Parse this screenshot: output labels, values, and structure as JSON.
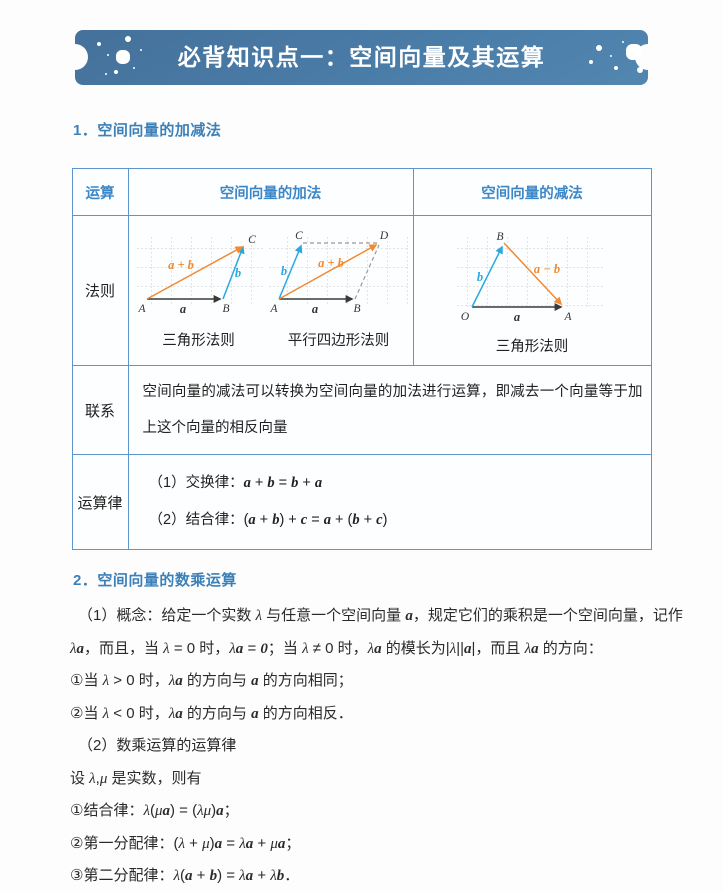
{
  "colors": {
    "banner-bg": "#4a7ca8",
    "heading-blue": "#3c80b8",
    "table-border": "#5b96cf",
    "header-text": "#3b87c8",
    "vec-orange": "#ef8b33",
    "vec-cyan": "#29a9e0",
    "grid-gray": "#c9c9c9",
    "text-dark": "#333333"
  },
  "banner": {
    "title": "必背知识点一：空间向量及其运算"
  },
  "section1": {
    "heading": "1．空间向量的加减法",
    "table": {
      "header": [
        "运算",
        "空间向量的加法",
        "空间向量的减法"
      ],
      "rows": {
        "rule": {
          "label": "法则"
        },
        "relation": {
          "label": "联系",
          "text": "空间向量的减法可以转换为空间向量的加法进行运算，即减去一个向量等于加上这个向量的相反向量"
        },
        "laws": {
          "label": "运算律",
          "lines": [
            "（1）交换律：**a** + **b** = **b** + **a**",
            "（2）结合律：(**a** + **b**) + **c** = **a** + (**b** + **c**)"
          ]
        }
      },
      "diagrams": {
        "triangle_add": {
          "caption": "三角形法则",
          "point_A": "A",
          "point_B": "B",
          "point_C": "C",
          "vec_a": "a",
          "vec_b": "b",
          "vec_sum": "a + b"
        },
        "parallelogram": {
          "caption": "平行四边形法则",
          "point_A": "A",
          "point_B": "B",
          "point_C": "C",
          "point_D": "D",
          "vec_a": "a",
          "vec_b": "b",
          "vec_sum": "a + b"
        },
        "triangle_sub": {
          "caption": "三角形法则",
          "point_O": "O",
          "point_A": "A",
          "point_B": "B",
          "vec_a": "a",
          "vec_b": "b",
          "vec_diff": "a − b"
        }
      }
    }
  },
  "section2": {
    "heading": "2．空间向量的数乘运算",
    "lines": [
      "（1）概念：给定一个实数 *λ* 与任意一个空间向量 **a**，规定它们的乘积是一个空间向量，记作",
      "*λ***a**，而且，当 *λ* = 0 时，*λ***a** = **0**；当 *λ* ≠ 0 时，*λ***a** 的模长为|*λ*||**a**|，而且 *λ***a** 的方向：",
      "①当 *λ* > 0 时，*λ***a** 的方向与 **a** 的方向相同；",
      "②当 *λ* < 0 时，*λ***a** 的方向与 **a** 的方向相反．",
      "（2）数乘运算的运算律",
      "设 *λ*,*μ* 是实数，则有",
      "①结合律：*λ*(*μ***a**) = (*λμ*)**a**；",
      "②第一分配律：(*λ* + *μ*)**a** = *λ***a** + *μ***a**；",
      "③第二分配律：*λ*(**a** + **b**) = *λ***a** + *λ***b**．"
    ]
  }
}
